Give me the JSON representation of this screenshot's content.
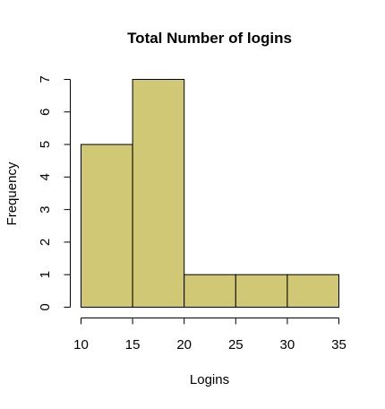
{
  "chart_data": {
    "type": "bar",
    "subtype": "histogram",
    "title": "Total Number of logins",
    "xlabel": "Logins",
    "ylabel": "Frequency",
    "bins": [
      {
        "start": 10,
        "end": 15,
        "count": 5
      },
      {
        "start": 15,
        "end": 20,
        "count": 7
      },
      {
        "start": 20,
        "end": 25,
        "count": 1
      },
      {
        "start": 25,
        "end": 30,
        "count": 1
      },
      {
        "start": 30,
        "end": 35,
        "count": 1
      }
    ],
    "x_ticks": [
      10,
      15,
      20,
      25,
      30,
      35
    ],
    "y_ticks": [
      0,
      1,
      2,
      3,
      4,
      5,
      6,
      7
    ],
    "xlim": [
      10,
      35
    ],
    "ylim": [
      0,
      7
    ],
    "grid": false,
    "legend": "none",
    "bar_color": "#D0C874",
    "bar_edge_color": "#000000"
  }
}
